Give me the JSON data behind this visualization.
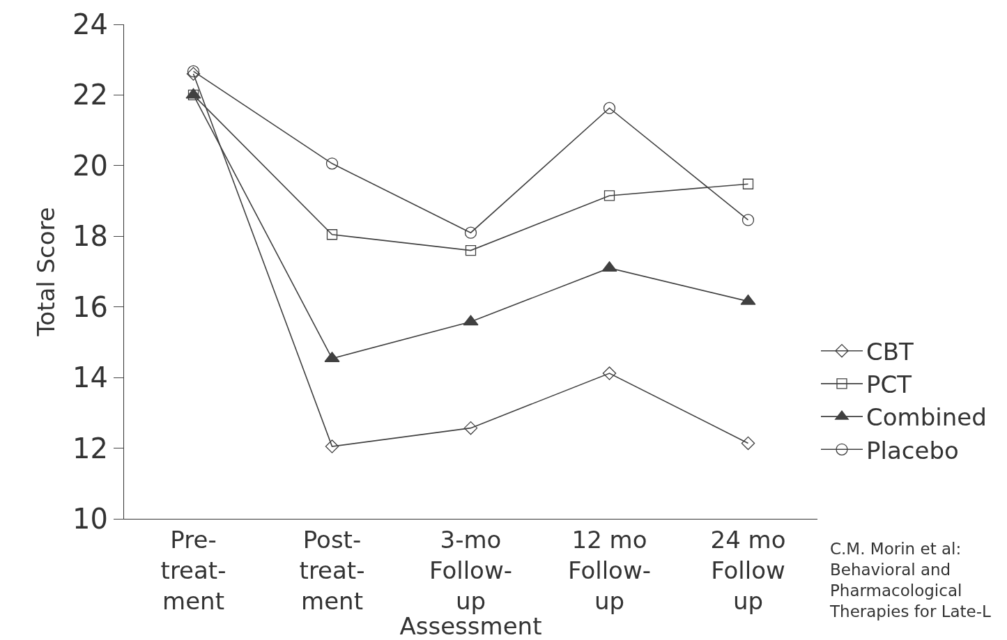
{
  "chart_data": {
    "type": "line",
    "xlabel": "Assessment",
    "ylabel": "Total Score",
    "categories": [
      "Pre-\ntreat-\nment",
      "Post-\ntreat-\nment",
      "3-mo\nFollow-\nup",
      "12 mo\nFollow-\nup",
      "24 mo\nFollow\nup"
    ],
    "series": [
      {
        "name": "CBT",
        "color": "#404040",
        "marker": "diamond",
        "values": [
          22.6,
          12.05,
          12.57,
          14.12,
          12.14
        ]
      },
      {
        "name": "PCT",
        "color": "#404040",
        "marker": "square",
        "values": [
          22.0,
          18.05,
          17.6,
          19.15,
          19.48
        ]
      },
      {
        "name": "Combined",
        "color": "#404040",
        "marker": "triangle",
        "values": [
          22.0,
          14.54,
          15.58,
          17.1,
          16.16
        ]
      },
      {
        "name": "Placebo",
        "color": "#404040",
        "marker": "circle",
        "values": [
          22.67,
          20.06,
          18.1,
          21.63,
          18.46
        ]
      }
    ],
    "ylim": [
      10,
      24
    ],
    "yticks": [
      10,
      12,
      14,
      16,
      18,
      20,
      22,
      24
    ],
    "legend": "right",
    "annotations": [
      "C.M. Morin et al:\nBehavioral and\nPharmacological\nTherapies for Late-L"
    ]
  }
}
